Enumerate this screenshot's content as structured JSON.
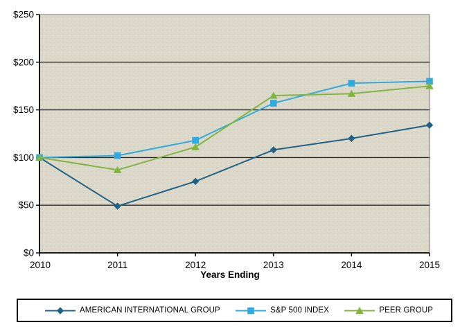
{
  "chart_data": {
    "type": "line",
    "title": "",
    "xlabel": "Years Ending",
    "ylabel": "",
    "x": [
      "2010",
      "2011",
      "2012",
      "2013",
      "2014",
      "2015"
    ],
    "ylim": [
      0,
      250
    ],
    "yticks": [
      0,
      50,
      100,
      150,
      200,
      250
    ],
    "ytick_labels": [
      "$0",
      "$50",
      "$100",
      "$150",
      "$200",
      "$250"
    ],
    "grid": "horizontal",
    "legend_position": "bottom-box",
    "plot_bg_color": "#DBD8C9",
    "gridline_color": "#2b2b2b",
    "axis_color": "#000000",
    "series": [
      {
        "name": "AMERICAN INTERNATIONAL GROUP",
        "marker": "diamond",
        "color": "#1F6287",
        "values": [
          100,
          49,
          75,
          108,
          120,
          134
        ]
      },
      {
        "name": "S&P 500 INDEX",
        "marker": "square",
        "color": "#2FA9DE",
        "values": [
          100,
          102,
          118,
          157,
          178,
          180
        ]
      },
      {
        "name": "PEER GROUP",
        "marker": "triangle",
        "color": "#82B440",
        "values": [
          100,
          87,
          111,
          165,
          167,
          175
        ]
      }
    ]
  }
}
